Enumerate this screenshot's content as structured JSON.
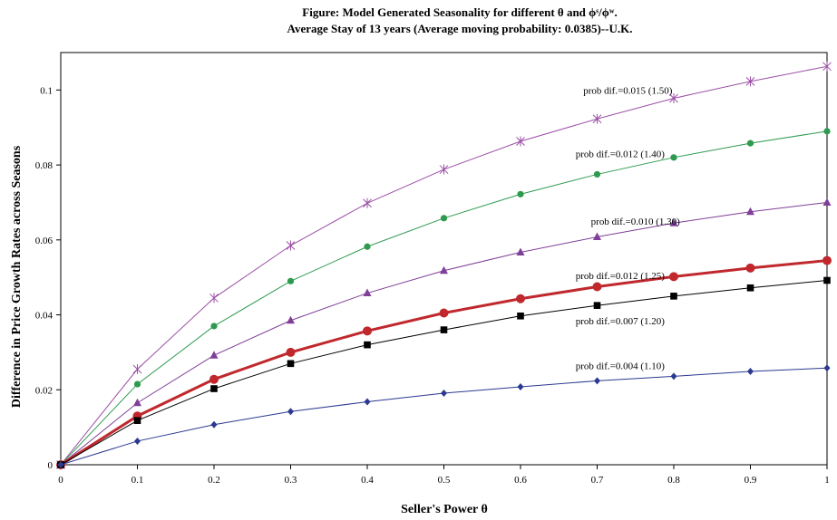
{
  "chart_data": {
    "type": "line",
    "title_line1": "Figure:  Model Generated Seasonality for different  θ and  ϕˢ/ϕʷ.",
    "title_line2": "Average Stay of 13 years (Average moving probability:  0.0385)--U.K.",
    "xlabel": "Seller's Power  θ",
    "ylabel": "Difference in Price  Growth  Rates across Seasons",
    "x": [
      0,
      0.1,
      0.2,
      0.3,
      0.4,
      0.5,
      0.6,
      0.7,
      0.8,
      0.9,
      1
    ],
    "x_tick_labels": [
      "0",
      "0.1",
      "0.2",
      "0.3",
      "0.4",
      "0.5",
      "0.6",
      "0.7",
      "0.8",
      "0.9",
      "1"
    ],
    "y_ticks": [
      0,
      0.02,
      0.04,
      0.06,
      0.08,
      0.1
    ],
    "y_tick_labels": [
      "0",
      "0.02",
      "0.04",
      "0.06",
      "0.08",
      "0.1"
    ],
    "xlim": [
      0,
      1
    ],
    "ylim": [
      0,
      0.11
    ],
    "grid": false,
    "series": [
      {
        "name": "prob dif.=0.015  (1.50)",
        "color": "#9b4fa6",
        "marker": "asterisk",
        "width": 1,
        "values": [
          0,
          0.0255,
          0.0445,
          0.0585,
          0.0698,
          0.0788,
          0.0863,
          0.0923,
          0.0978,
          0.1023,
          0.1063
        ],
        "label_x": 0.74,
        "label_y": 0.1
      },
      {
        "name": "prob dif.=0.012  (1.40)",
        "color": "#2e9a4f",
        "marker": "circle",
        "width": 1,
        "values": [
          0,
          0.0215,
          0.037,
          0.049,
          0.0582,
          0.0658,
          0.0722,
          0.0775,
          0.082,
          0.0858,
          0.089
        ],
        "label_x": 0.73,
        "label_y": 0.083
      },
      {
        "name": "prob dif.=0.010  (1.30)",
        "color": "#7f3f98",
        "marker": "triangle",
        "width": 1,
        "values": [
          0,
          0.0165,
          0.0292,
          0.0385,
          0.0458,
          0.0518,
          0.0567,
          0.0608,
          0.0645,
          0.0675,
          0.07
        ],
        "label_x": 0.75,
        "label_y": 0.065
      },
      {
        "name": "prob dif.=0.012  (1.25)",
        "color": "#c0282d",
        "marker": "big-circle",
        "width": 3,
        "values": [
          0,
          0.013,
          0.0228,
          0.03,
          0.0357,
          0.0405,
          0.0443,
          0.0475,
          0.0502,
          0.0525,
          0.0545
        ],
        "label_x": 0.73,
        "label_y": 0.0505
      },
      {
        "name": "prob dif.=0.007  (1.20)",
        "color": "#000000",
        "marker": "square",
        "width": 1,
        "values": [
          0,
          0.0118,
          0.0203,
          0.027,
          0.032,
          0.036,
          0.0397,
          0.0425,
          0.045,
          0.0472,
          0.0492
        ],
        "label_x": 0.73,
        "label_y": 0.0385
      },
      {
        "name": "prob dif.=0.004  (1.10)",
        "color": "#2b3990",
        "marker": "diamond",
        "width": 1,
        "values": [
          0,
          0.0063,
          0.0107,
          0.0142,
          0.0168,
          0.0191,
          0.0208,
          0.0224,
          0.0236,
          0.0249,
          0.0258
        ],
        "label_x": 0.73,
        "label_y": 0.0265
      }
    ]
  }
}
